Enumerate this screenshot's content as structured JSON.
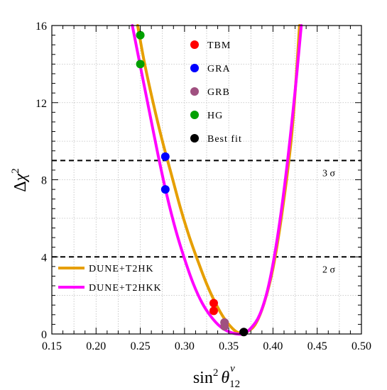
{
  "chart_data": {
    "type": "line",
    "xlim": [
      0.15,
      0.5
    ],
    "ylim": [
      0,
      16
    ],
    "x_ticks": [
      "0.15",
      "0.20",
      "0.25",
      "0.30",
      "0.35",
      "0.40",
      "0.45",
      "0.50"
    ],
    "y_ticks": [
      "0",
      "4",
      "8",
      "12",
      "16"
    ],
    "xlabel": {
      "main": "sin",
      "sup": "2",
      "theta": "θ",
      "sub": "12",
      "nu": "ν"
    },
    "ylabel": {
      "delta": "Δ",
      "chi": "χ",
      "sup": "2"
    },
    "grid": true,
    "series": [
      {
        "name": "DUNE+T2HK",
        "color": "#E69F00",
        "x": [
          0.247,
          0.255,
          0.265,
          0.275,
          0.285,
          0.295,
          0.305,
          0.315,
          0.325,
          0.335,
          0.345,
          0.355,
          0.362,
          0.37,
          0.38,
          0.39,
          0.4,
          0.41,
          0.42,
          0.425,
          0.43
        ],
        "y": [
          16.0,
          14.0,
          11.9,
          10.0,
          8.3,
          6.6,
          5.1,
          3.8,
          2.6,
          1.6,
          0.8,
          0.25,
          0.05,
          0.1,
          0.5,
          1.6,
          3.4,
          6.2,
          9.8,
          12.5,
          16.0
        ]
      },
      {
        "name": "DUNE+T2HKK",
        "color": "#FF00FF",
        "x": [
          0.241,
          0.25,
          0.26,
          0.27,
          0.28,
          0.29,
          0.3,
          0.31,
          0.32,
          0.33,
          0.34,
          0.35,
          0.36,
          0.367,
          0.375,
          0.385,
          0.395,
          0.405,
          0.415,
          0.425,
          0.432
        ],
        "y": [
          16.0,
          13.9,
          11.6,
          9.3,
          7.2,
          5.4,
          3.9,
          2.6,
          1.6,
          0.9,
          0.4,
          0.12,
          0.0,
          0.02,
          0.3,
          1.0,
          2.5,
          5.0,
          8.4,
          12.6,
          16.0
        ]
      }
    ],
    "points": [
      {
        "name": "TBM",
        "color": "#FF0000",
        "coords": [
          [
            0.333,
            1.6
          ],
          [
            0.333,
            1.2
          ]
        ]
      },
      {
        "name": "GRA",
        "color": "#0000FF",
        "coords": [
          [
            0.2783,
            9.2
          ],
          [
            0.2783,
            7.5
          ]
        ]
      },
      {
        "name": "GRB",
        "color": "#A05080",
        "coords": [
          [
            0.3452,
            0.6
          ],
          [
            0.3452,
            0.4
          ]
        ]
      },
      {
        "name": "HG",
        "color": "#00A000",
        "coords": [
          [
            0.25,
            15.5
          ],
          [
            0.25,
            14.0
          ]
        ]
      },
      {
        "name": "Best fit",
        "color": "#000000",
        "coords": [
          [
            0.367,
            0.1
          ]
        ]
      }
    ],
    "hlines": [
      {
        "y": 9,
        "label": "3 σ",
        "style": "dashed"
      },
      {
        "y": 4,
        "label": "2 σ",
        "style": "dashed"
      }
    ],
    "point_legend_placement": "top-center",
    "line_legend_placement": "bottom-left"
  }
}
